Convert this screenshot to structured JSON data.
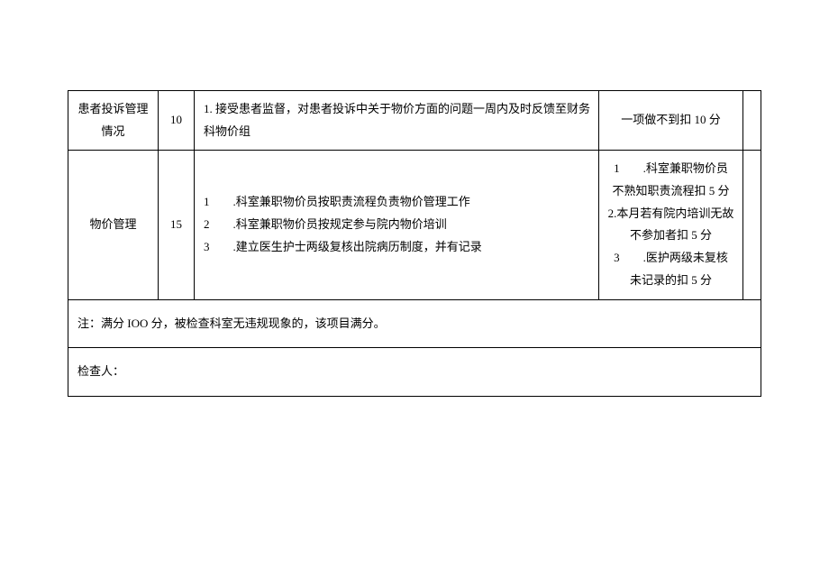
{
  "rows": [
    {
      "category": "患者投诉管理情况",
      "score": "10",
      "criteria": "1. 接受患者监督，对患者投诉中关于物价方面的问题一周内及时反馈至财务科物价组",
      "penalty": "一项做不到扣 10 分"
    },
    {
      "category": "物价管理",
      "score": "15",
      "criteria_lines": [
        "1        .科室兼职物价员按职责流程负责物价管理工作",
        "2        .科室兼职物价员按规定参与院内物价培训",
        "3        .建立医生护士两级复核出院病历制度，并有记录"
      ],
      "penalty_lines": [
        "1        .科室兼职物价员",
        "不熟知职责流程扣 5 分",
        "2.本月若有院内培训无故",
        "不参加者扣 5 分",
        "3        .医护两级未复核",
        "未记录的扣 5 分"
      ]
    }
  ],
  "note": "注：满分 IOO 分，被检查科室无违规现象的，该项目满分。",
  "inspector": "检查人："
}
